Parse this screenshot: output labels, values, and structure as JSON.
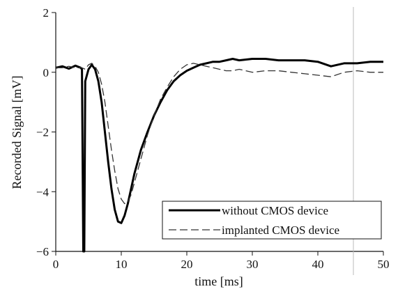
{
  "chart_data": {
    "type": "line",
    "title": "",
    "xlabel": "time [ms]",
    "ylabel": "Recorded Signal [mV]",
    "xlim": [
      0,
      50
    ],
    "ylim": [
      -6,
      2
    ],
    "x_ticks": [
      "0",
      "10",
      "20",
      "30",
      "40",
      "50"
    ],
    "y_ticks": [
      "2",
      "0",
      "−2",
      "−4",
      "−6"
    ],
    "grid": false,
    "legend_position": "bottom-right",
    "series": [
      {
        "name": "without CMOS device",
        "style": "solid",
        "color": "#000000",
        "x": [
          0,
          1,
          2,
          3,
          3.8,
          4.0,
          4.2,
          4.35,
          4.5,
          5.0,
          5.5,
          6.0,
          6.5,
          7.0,
          7.5,
          8.0,
          8.5,
          9.0,
          9.5,
          10.0,
          10.5,
          11.0,
          11.5,
          12.0,
          12.5,
          13,
          14,
          15,
          16,
          17,
          18,
          19,
          20,
          21,
          22,
          23,
          24,
          25,
          26,
          27,
          28,
          30,
          32,
          34,
          36,
          38,
          40,
          42,
          44,
          46,
          48,
          50
        ],
        "y": [
          0.15,
          0.2,
          0.12,
          0.22,
          0.15,
          0.1,
          -6.0,
          -6.0,
          -0.3,
          0.1,
          0.25,
          0.1,
          -0.3,
          -1.0,
          -2.0,
          -3.0,
          -3.9,
          -4.6,
          -5.0,
          -5.05,
          -4.8,
          -4.4,
          -3.9,
          -3.4,
          -3.0,
          -2.6,
          -2.0,
          -1.45,
          -1.0,
          -0.6,
          -0.3,
          -0.1,
          0.05,
          0.15,
          0.25,
          0.3,
          0.35,
          0.35,
          0.4,
          0.45,
          0.4,
          0.45,
          0.45,
          0.4,
          0.4,
          0.4,
          0.35,
          0.2,
          0.3,
          0.3,
          0.35,
          0.35
        ]
      },
      {
        "name": "implanted CMOS device",
        "style": "dashed",
        "color": "#333333",
        "x": [
          0,
          1,
          2,
          3,
          4,
          4.5,
          5,
          5.5,
          6,
          6.5,
          7,
          7.5,
          8,
          8.5,
          9,
          9.5,
          10,
          10.5,
          11,
          11.5,
          12,
          12.5,
          13,
          14,
          15,
          16,
          17,
          18,
          19,
          20,
          21,
          22,
          23,
          24,
          25,
          26,
          27,
          28,
          30,
          32,
          34,
          36,
          38,
          40,
          42,
          44,
          46,
          48,
          50
        ],
        "y": [
          0.15,
          0.15,
          0.2,
          0.15,
          0.15,
          0.1,
          0.25,
          0.3,
          0.2,
          0.0,
          -0.4,
          -1.0,
          -1.8,
          -2.6,
          -3.3,
          -3.9,
          -4.25,
          -4.4,
          -4.35,
          -4.1,
          -3.7,
          -3.3,
          -2.9,
          -2.1,
          -1.45,
          -0.9,
          -0.5,
          -0.15,
          0.1,
          0.25,
          0.3,
          0.25,
          0.2,
          0.15,
          0.1,
          0.05,
          0.05,
          0.1,
          0.0,
          0.05,
          0.05,
          0.0,
          -0.05,
          -0.1,
          -0.15,
          0.0,
          0.05,
          0.0,
          0.0
        ]
      }
    ]
  }
}
